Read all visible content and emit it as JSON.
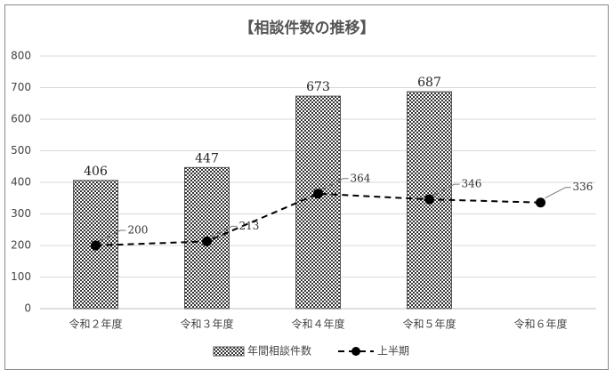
{
  "chart_data": {
    "type": "combo",
    "title": "【相談件数の推移】",
    "categories": [
      "令和２年度",
      "令和３年度",
      "令和４年度",
      "令和５年度",
      "令和６年度"
    ],
    "series": [
      {
        "name": "年間相談件数",
        "type": "bar",
        "color": "#555555",
        "values": [
          406,
          447,
          673,
          687,
          null
        ]
      },
      {
        "name": "上半期",
        "type": "line",
        "color": "#000000",
        "values": [
          200,
          213,
          364,
          346,
          336
        ]
      }
    ],
    "ylim": [
      0,
      800
    ],
    "yticks": [
      0,
      100,
      200,
      300,
      400,
      500,
      600,
      700,
      800
    ],
    "grid": true,
    "legend": "bottom"
  }
}
